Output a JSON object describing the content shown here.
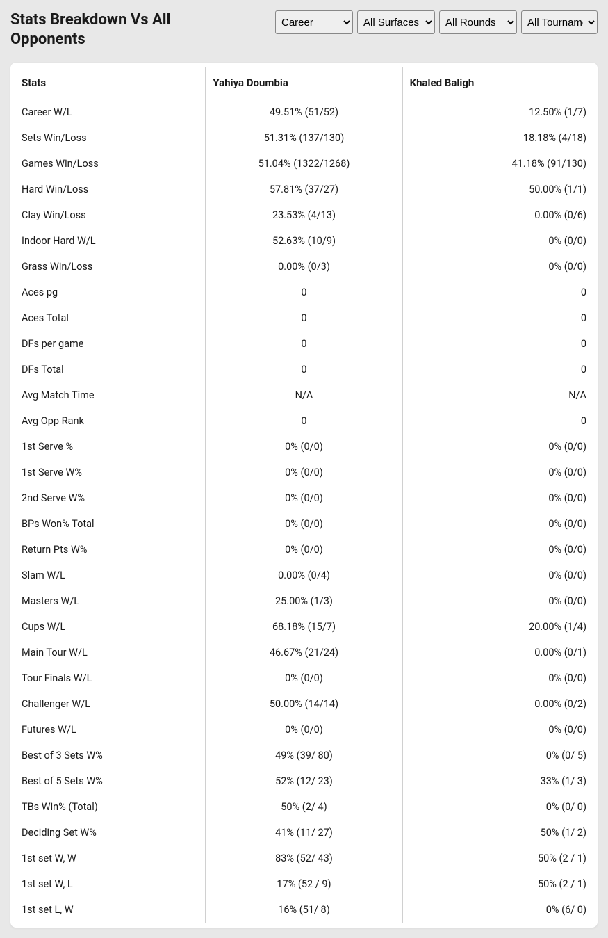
{
  "header": {
    "title": "Stats Breakdown Vs All Opponents"
  },
  "filters": {
    "period": {
      "selected": "Career"
    },
    "surface": {
      "selected": "All Surfaces"
    },
    "round": {
      "selected": "All Rounds"
    },
    "tournament": {
      "selected": "All Tournaments"
    }
  },
  "table": {
    "columns": {
      "stats": "Stats",
      "player1": "Yahiya Doumbia",
      "player2": "Khaled Baligh"
    },
    "rows": [
      {
        "stat": "Career W/L",
        "p1": "49.51% (51/52)",
        "p2": "12.50% (1/7)"
      },
      {
        "stat": "Sets Win/Loss",
        "p1": "51.31% (137/130)",
        "p2": "18.18% (4/18)"
      },
      {
        "stat": "Games Win/Loss",
        "p1": "51.04% (1322/1268)",
        "p2": "41.18% (91/130)"
      },
      {
        "stat": "Hard Win/Loss",
        "p1": "57.81% (37/27)",
        "p2": "50.00% (1/1)"
      },
      {
        "stat": "Clay Win/Loss",
        "p1": "23.53% (4/13)",
        "p2": "0.00% (0/6)"
      },
      {
        "stat": "Indoor Hard W/L",
        "p1": "52.63% (10/9)",
        "p2": "0% (0/0)"
      },
      {
        "stat": "Grass Win/Loss",
        "p1": "0.00% (0/3)",
        "p2": "0% (0/0)"
      },
      {
        "stat": "Aces pg",
        "p1": "0",
        "p2": "0"
      },
      {
        "stat": "Aces Total",
        "p1": "0",
        "p2": "0"
      },
      {
        "stat": "DFs per game",
        "p1": "0",
        "p2": "0"
      },
      {
        "stat": "DFs Total",
        "p1": "0",
        "p2": "0"
      },
      {
        "stat": "Avg Match Time",
        "p1": "N/A",
        "p2": "N/A"
      },
      {
        "stat": "Avg Opp Rank",
        "p1": "0",
        "p2": "0"
      },
      {
        "stat": "1st Serve %",
        "p1": "0% (0/0)",
        "p2": "0% (0/0)"
      },
      {
        "stat": "1st Serve W%",
        "p1": "0% (0/0)",
        "p2": "0% (0/0)"
      },
      {
        "stat": "2nd Serve W%",
        "p1": "0% (0/0)",
        "p2": "0% (0/0)"
      },
      {
        "stat": "BPs Won% Total",
        "p1": "0% (0/0)",
        "p2": "0% (0/0)"
      },
      {
        "stat": "Return Pts W%",
        "p1": "0% (0/0)",
        "p2": "0% (0/0)"
      },
      {
        "stat": "Slam W/L",
        "p1": "0.00% (0/4)",
        "p2": "0% (0/0)"
      },
      {
        "stat": "Masters W/L",
        "p1": "25.00% (1/3)",
        "p2": "0% (0/0)"
      },
      {
        "stat": "Cups W/L",
        "p1": "68.18% (15/7)",
        "p2": "20.00% (1/4)"
      },
      {
        "stat": "Main Tour W/L",
        "p1": "46.67% (21/24)",
        "p2": "0.00% (0/1)"
      },
      {
        "stat": "Tour Finals W/L",
        "p1": "0% (0/0)",
        "p2": "0% (0/0)"
      },
      {
        "stat": "Challenger W/L",
        "p1": "50.00% (14/14)",
        "p2": "0.00% (0/2)"
      },
      {
        "stat": "Futures W/L",
        "p1": "0% (0/0)",
        "p2": "0% (0/0)"
      },
      {
        "stat": "Best of 3 Sets W%",
        "p1": "49% (39/ 80)",
        "p2": "0% (0/ 5)"
      },
      {
        "stat": "Best of 5 Sets W%",
        "p1": "52% (12/ 23)",
        "p2": "33% (1/ 3)"
      },
      {
        "stat": "TBs Win% (Total)",
        "p1": "50% (2/ 4)",
        "p2": "0% (0/ 0)"
      },
      {
        "stat": "Deciding Set W%",
        "p1": "41% (11/ 27)",
        "p2": "50% (1/ 2)"
      },
      {
        "stat": "1st set W, W",
        "p1": "83% (52/ 43)",
        "p2": "50% (2 / 1)"
      },
      {
        "stat": "1st set W, L",
        "p1": "17% (52 / 9)",
        "p2": "50% (2 / 1)"
      },
      {
        "stat": "1st set L, W",
        "p1": "16% (51/ 8)",
        "p2": "0% (6/ 0)"
      }
    ]
  },
  "styling": {
    "background_color": "#e8e8e8",
    "card_background": "#ffffff",
    "text_color": "#1a1a1a",
    "header_border_color": "#000000",
    "cell_border_color": "#d0d0d0",
    "title_fontsize": 22,
    "header_fontsize": 15,
    "cell_fontsize": 14.5
  }
}
